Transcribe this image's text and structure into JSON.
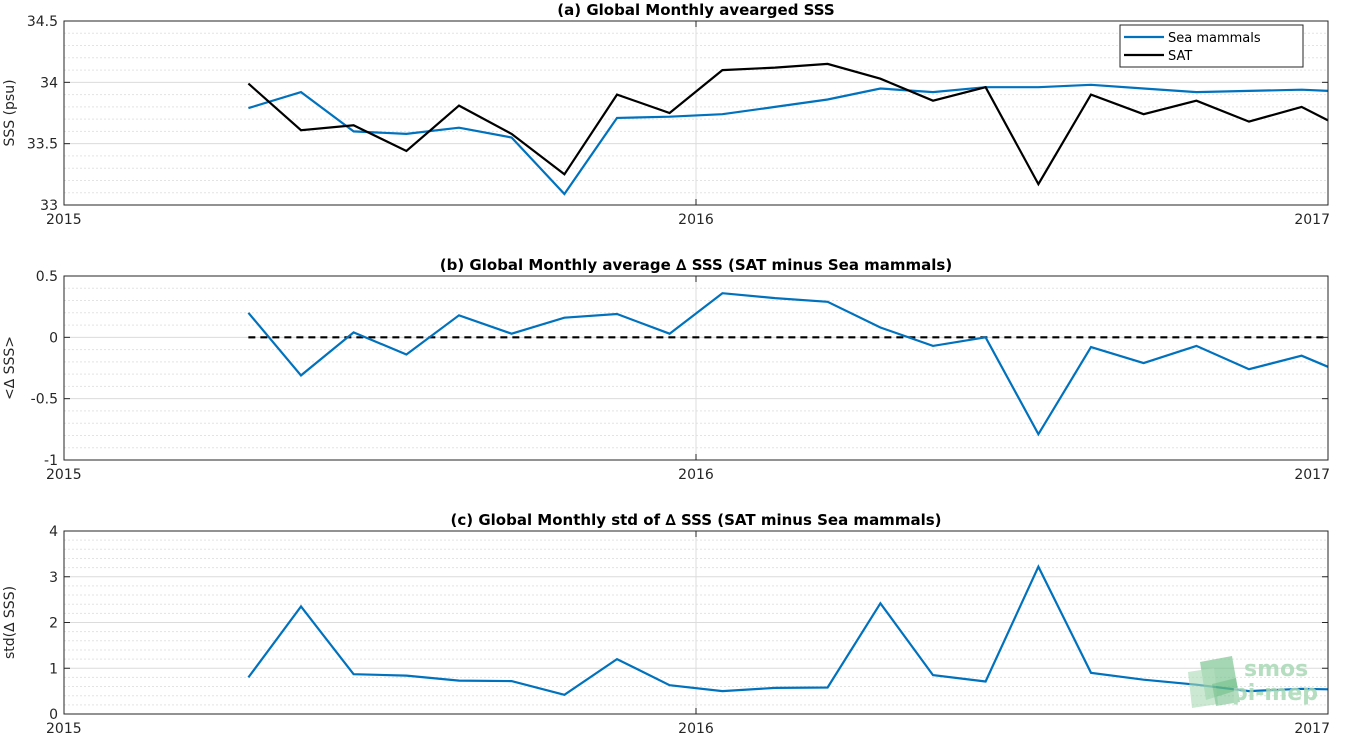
{
  "chart_data": [
    {
      "id": "a",
      "type": "line",
      "title": "(a) Global Monthly avearged SSS",
      "ylabel": "SSS (psu)",
      "xlabel": "",
      "xlim": [
        2015,
        2017
      ],
      "ylim": [
        33,
        34.5
      ],
      "xticks": [
        2015,
        2016,
        2017
      ],
      "xtick_labels": [
        "2015",
        "2016",
        "2017"
      ],
      "yticks": [
        33,
        33.5,
        34,
        34.5
      ],
      "ytick_labels": [
        "33",
        "33.5",
        "34",
        "34.5"
      ],
      "minor_yticks": [
        33.1,
        33.2,
        33.3,
        33.4,
        33.6,
        33.7,
        33.8,
        33.9,
        34.1,
        34.2,
        34.3,
        34.4
      ],
      "grid": true,
      "legend": "top-right",
      "x": [
        2015.2917,
        2015.375,
        2015.4583,
        2015.5417,
        2015.625,
        2015.7083,
        2015.7917,
        2015.875,
        2015.9583,
        2016.0417,
        2016.125,
        2016.2083,
        2016.2917,
        2016.375,
        2016.4583,
        2016.5417,
        2016.625,
        2016.7083,
        2016.7917,
        2016.875,
        2016.9583,
        2017.0
      ],
      "series": [
        {
          "name": "Sea mammals",
          "color": "#0072bd",
          "values": [
            33.79,
            33.92,
            33.6,
            33.58,
            33.63,
            33.55,
            33.09,
            33.71,
            33.72,
            33.74,
            33.8,
            33.86,
            33.95,
            33.92,
            33.96,
            33.96,
            33.98,
            33.95,
            33.92,
            33.93,
            33.94,
            33.93
          ]
        },
        {
          "name": "SAT",
          "color": "#000000",
          "values": [
            33.99,
            33.61,
            33.65,
            33.44,
            33.81,
            33.58,
            33.25,
            33.9,
            33.75,
            34.1,
            34.12,
            34.15,
            34.03,
            33.85,
            33.96,
            33.17,
            33.9,
            33.74,
            33.85,
            33.68,
            33.8,
            33.69
          ]
        }
      ]
    },
    {
      "id": "b",
      "type": "line",
      "title": "(b) Global Monthly average ∆ SSS (SAT minus Sea mammals)",
      "ylabel": "<∆ SSS>",
      "xlabel": "",
      "xlim": [
        2015,
        2017
      ],
      "ylim": [
        -1,
        0.5
      ],
      "xticks": [
        2015,
        2016,
        2017
      ],
      "xtick_labels": [
        "2015",
        "2016",
        "2017"
      ],
      "yticks": [
        -1,
        -0.5,
        0,
        0.5
      ],
      "ytick_labels": [
        "-1",
        "-0.5",
        "0",
        "0.5"
      ],
      "minor_yticks": [
        -0.9,
        -0.8,
        -0.7,
        -0.6,
        -0.4,
        -0.3,
        -0.2,
        -0.1,
        0.1,
        0.2,
        0.3,
        0.4
      ],
      "grid": true,
      "reference_line": {
        "y": 0,
        "x_range": [
          2015.2917,
          2017.0
        ],
        "style": "dashed",
        "color": "#000000"
      },
      "x": [
        2015.2917,
        2015.375,
        2015.4583,
        2015.5417,
        2015.625,
        2015.7083,
        2015.7917,
        2015.875,
        2015.9583,
        2016.0417,
        2016.125,
        2016.2083,
        2016.2917,
        2016.375,
        2016.4583,
        2016.5417,
        2016.625,
        2016.7083,
        2016.7917,
        2016.875,
        2016.9583,
        2017.0
      ],
      "series": [
        {
          "color": "#0072bd",
          "values": [
            0.2,
            -0.31,
            0.04,
            -0.14,
            0.18,
            0.03,
            0.16,
            0.19,
            0.03,
            0.36,
            0.32,
            0.29,
            0.08,
            -0.07,
            0.0,
            -0.79,
            -0.08,
            -0.21,
            -0.07,
            -0.26,
            -0.15,
            -0.24
          ]
        }
      ]
    },
    {
      "id": "c",
      "type": "line",
      "title": "(c) Global Monthly std of ∆ SSS (SAT minus Sea mammals)",
      "ylabel": "std(∆ SSS)",
      "xlabel": "",
      "xlim": [
        2015,
        2017
      ],
      "ylim": [
        0,
        4
      ],
      "xticks": [
        2015,
        2016,
        2017
      ],
      "xtick_labels": [
        "2015",
        "2016",
        "2017"
      ],
      "yticks": [
        0,
        1,
        2,
        3,
        4
      ],
      "ytick_labels": [
        "0",
        "1",
        "2",
        "3",
        "4"
      ],
      "minor_yticks": [
        0.2,
        0.4,
        0.6,
        0.8,
        1.2,
        1.4,
        1.6,
        1.8,
        2.2,
        2.4,
        2.6,
        2.8,
        3.2,
        3.4,
        3.6,
        3.8
      ],
      "grid": true,
      "x": [
        2015.2917,
        2015.375,
        2015.4583,
        2015.5417,
        2015.625,
        2015.7083,
        2015.7917,
        2015.875,
        2015.9583,
        2016.0417,
        2016.125,
        2016.2083,
        2016.2917,
        2016.375,
        2016.4583,
        2016.5417,
        2016.625,
        2016.7083,
        2016.7917,
        2016.875,
        2016.9583,
        2017.0
      ],
      "series": [
        {
          "color": "#0072bd",
          "values": [
            0.8,
            2.35,
            0.87,
            0.84,
            0.73,
            0.72,
            0.42,
            1.2,
            0.63,
            0.5,
            0.57,
            0.58,
            2.42,
            0.85,
            0.71,
            3.22,
            0.9,
            0.75,
            0.64,
            0.5,
            0.55,
            0.54
          ]
        }
      ]
    }
  ],
  "logo": {
    "text_line1": "smos",
    "text_line2": "pi-mep",
    "color": "#a8d9b5"
  }
}
